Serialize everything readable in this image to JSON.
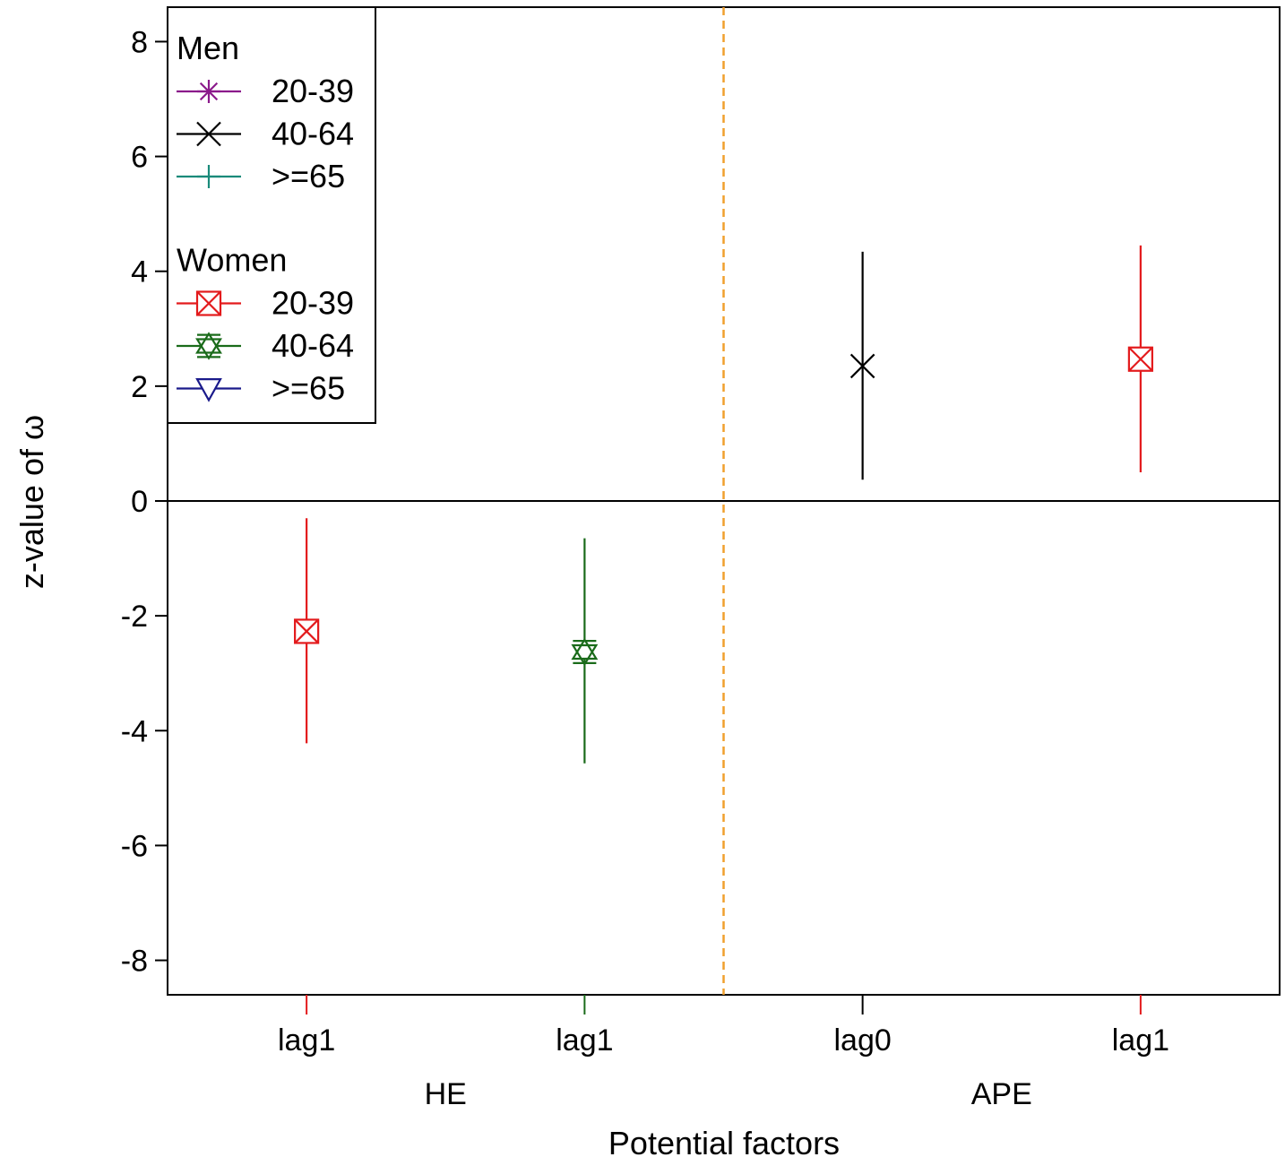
{
  "chart_data": {
    "type": "scatter",
    "subtype": "point-with-interval",
    "xlabel": "Potential factors",
    "ylabel": "z-value of ω",
    "ylim": [
      -8.6,
      8.6
    ],
    "yticks": [
      "8",
      "6",
      "4",
      "2",
      "0",
      "-2",
      "-4",
      "-6",
      "-8"
    ],
    "ytick_values": [
      8,
      6,
      4,
      2,
      0,
      -2,
      -4,
      -6,
      -8
    ],
    "categories": [
      "lag1",
      "lag1",
      "lag0",
      "lag1"
    ],
    "groups": [
      "HE",
      "APE"
    ],
    "group_of_category": [
      0,
      0,
      1,
      1
    ],
    "reference_line": {
      "y": 0,
      "color": "#000000"
    },
    "divider": {
      "between_categories": [
        1,
        2
      ],
      "color": "#f0a02e",
      "style": "dashed"
    },
    "legend": {
      "position": "top-left",
      "sections": [
        {
          "title": "Men",
          "entries": [
            {
              "label": "20-39",
              "marker": "asterisk-icon",
              "color": "#8b1a8b"
            },
            {
              "label": "40-64",
              "marker": "x-cross-icon",
              "color": "#000000"
            },
            {
              "label": ">=65",
              "marker": "plus-icon",
              "color": "#1a8a7a"
            }
          ]
        },
        {
          "title": "Women",
          "entries": [
            {
              "label": "20-39",
              "marker": "boxed-x-icon",
              "color": "#e31a1c"
            },
            {
              "label": "40-64",
              "marker": "hexagram-icon",
              "color": "#1a6b1a"
            },
            {
              "label": ">=65",
              "marker": "triangle-down-icon",
              "color": "#1a1a8b"
            }
          ]
        }
      ]
    },
    "points": [
      {
        "category_index": 0,
        "series": "Women 20-39",
        "marker": "boxed-x-icon",
        "color": "#e31a1c",
        "value": -2.27,
        "lower": -4.22,
        "upper": -0.3
      },
      {
        "category_index": 1,
        "series": "Women 40-64",
        "marker": "hexagram-icon",
        "color": "#1a6b1a",
        "value": -2.63,
        "lower": -4.57,
        "upper": -0.65
      },
      {
        "category_index": 2,
        "series": "Men 40-64",
        "marker": "x-cross-icon",
        "color": "#000000",
        "value": 2.35,
        "lower": 0.37,
        "upper": 4.34
      },
      {
        "category_index": 3,
        "series": "Women 20-39",
        "marker": "boxed-x-icon",
        "color": "#e31a1c",
        "value": 2.47,
        "lower": 0.5,
        "upper": 4.45
      }
    ]
  }
}
